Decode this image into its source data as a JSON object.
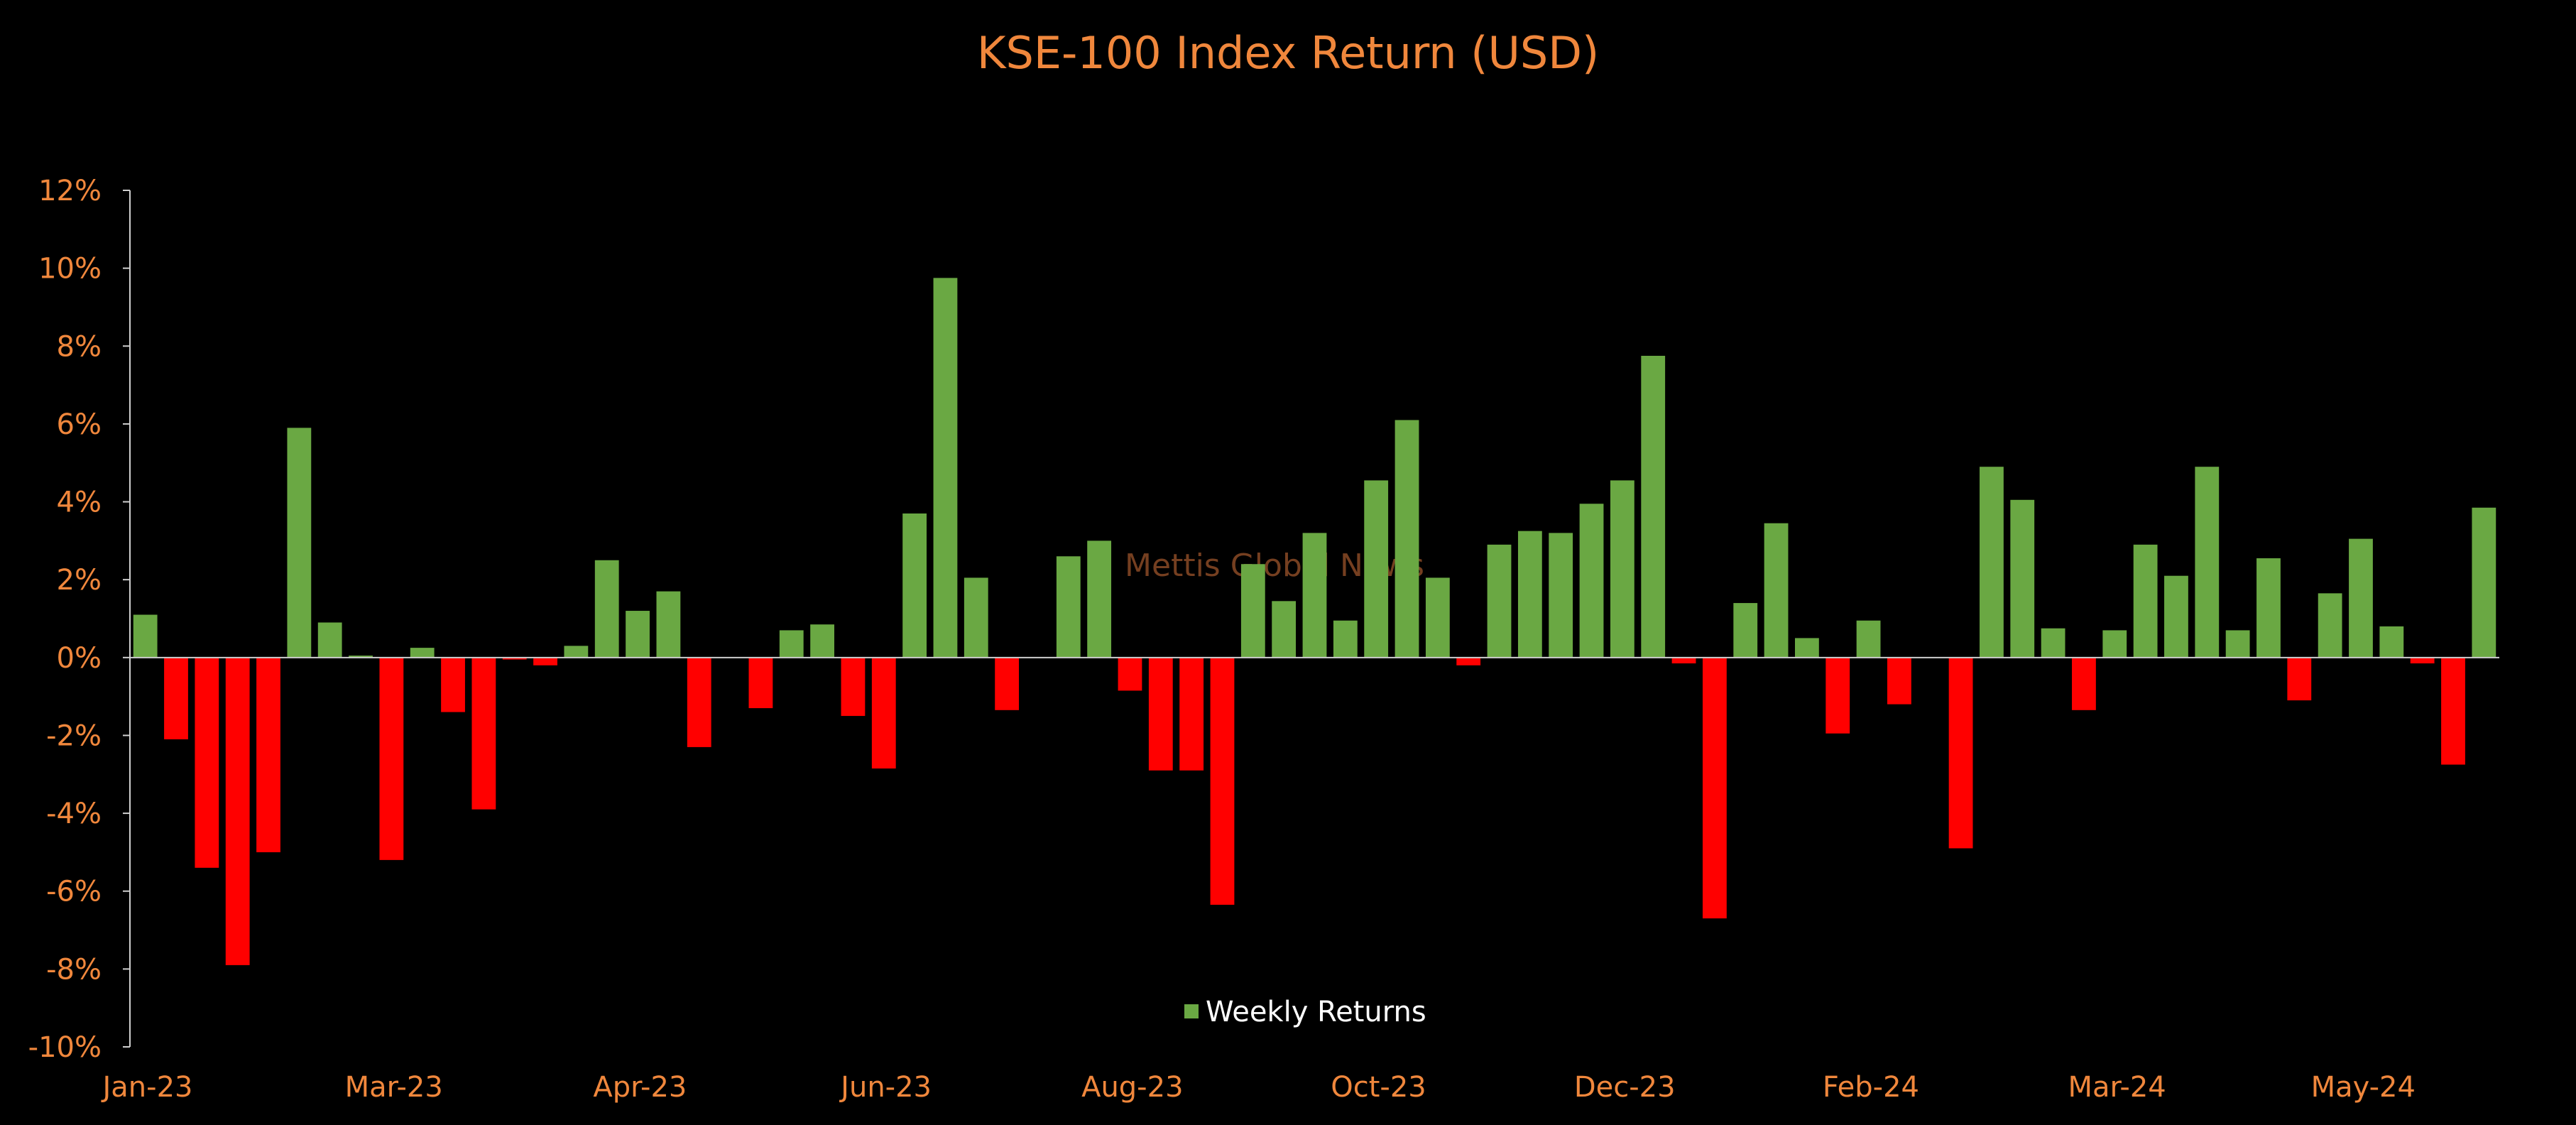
{
  "colors": {
    "background": "#000000",
    "text": "#f0873c",
    "positive": "#6aa843",
    "negative": "#ff0000",
    "axis": "#cfcfcf",
    "watermark": "#8a4a26",
    "legend_text": "#ffffff"
  },
  "watermark": "Mettis Global News",
  "chart_data": {
    "type": "bar",
    "title": "KSE-100 Index Return (USD)",
    "xlabel": "",
    "ylabel": "",
    "ylim": [
      -10,
      12
    ],
    "y_ticks": [
      -10,
      -8,
      -6,
      -4,
      -2,
      0,
      2,
      4,
      6,
      8,
      10,
      12
    ],
    "y_tick_labels": [
      "-10%",
      "-8%",
      "-6%",
      "-4%",
      "-2%",
      "0%",
      "2%",
      "4%",
      "6%",
      "8%",
      "10%",
      "12%"
    ],
    "x_tick_labels": [
      "Jan-23",
      "Mar-23",
      "Apr-23",
      "Jun-23",
      "Aug-23",
      "Oct-23",
      "Dec-23",
      "Feb-24",
      "Mar-24",
      "May-24"
    ],
    "x_tick_positions": [
      0,
      8,
      16,
      24,
      32,
      40,
      48,
      56,
      64,
      72
    ],
    "grid": false,
    "legend_position": "bottom-center",
    "series": [
      {
        "name": "Weekly Returns",
        "values": [
          1.1,
          -2.1,
          -5.4,
          -7.9,
          -5.0,
          5.9,
          0.9,
          0.05,
          -5.2,
          0.25,
          -1.4,
          -3.9,
          -0.05,
          -0.2,
          0.3,
          2.5,
          1.2,
          1.7,
          -2.3,
          0.0,
          -1.3,
          0.7,
          0.85,
          -1.5,
          -2.85,
          3.7,
          9.75,
          2.05,
          -1.35,
          0.0,
          2.6,
          3.0,
          -0.85,
          -2.9,
          -2.9,
          -6.35,
          2.4,
          1.45,
          3.2,
          0.95,
          4.55,
          6.1,
          2.05,
          -0.2,
          2.9,
          3.25,
          3.2,
          3.95,
          4.55,
          7.75,
          -0.15,
          -6.7,
          1.4,
          3.45,
          0.5,
          -1.95,
          0.95,
          -1.2,
          0.0,
          -4.9,
          4.9,
          4.05,
          0.75,
          -1.35,
          0.7,
          2.9,
          2.1,
          4.9,
          0.7,
          2.55,
          -1.1,
          1.65,
          3.05,
          0.8,
          -0.15,
          -2.75,
          3.85
        ]
      }
    ]
  }
}
